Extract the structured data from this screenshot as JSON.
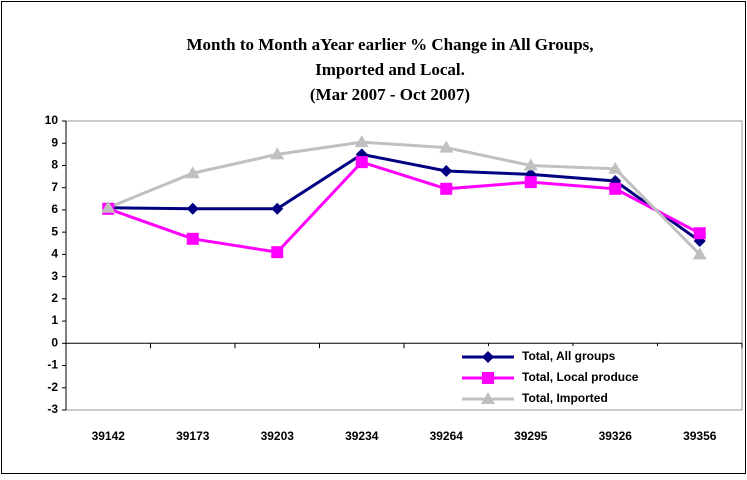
{
  "chart_data": {
    "type": "line",
    "title": [
      "Month to Month aYear earlier % Change in All Groups,",
      "Imported and Local."
    ],
    "subtitle": "(Mar 2007 - Oct 2007)",
    "categories": [
      "39142",
      "39173",
      "39203",
      "39234",
      "39264",
      "39295",
      "39326",
      "39356"
    ],
    "series": [
      {
        "name": "Total, All groups",
        "color": "#000080",
        "marker": "diamond",
        "values": [
          6.1,
          6.05,
          6.05,
          8.5,
          7.75,
          7.6,
          7.3,
          4.6
        ]
      },
      {
        "name": "Total, Local produce",
        "color": "#ff00ff",
        "marker": "square",
        "values": [
          6.05,
          4.7,
          4.1,
          8.15,
          6.95,
          7.25,
          6.95,
          4.95
        ]
      },
      {
        "name": "Total, Imported",
        "color": "#c0c0c0",
        "marker": "triangle",
        "values": [
          6.1,
          7.65,
          8.5,
          9.05,
          8.8,
          8.0,
          7.85,
          4.0
        ]
      }
    ],
    "ylim": [
      -3,
      10
    ],
    "yticks": [
      -3,
      -2,
      -1,
      0,
      1,
      2,
      3,
      4,
      5,
      6,
      7,
      8,
      9,
      10
    ],
    "legend": "lower-right"
  }
}
